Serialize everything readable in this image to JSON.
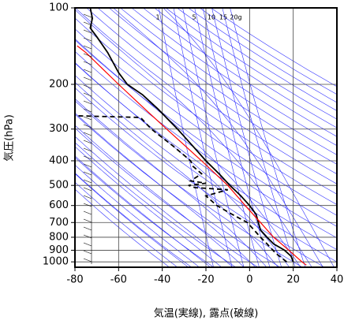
{
  "chart_data": {
    "type": "skewt",
    "ylabel": "気圧(hPa)",
    "xlabel": "気温(実線), 露点(破線)",
    "xlim": [
      -80,
      40
    ],
    "xticks": [
      -80,
      -60,
      -40,
      -20,
      0,
      20,
      40
    ],
    "ylim": [
      100,
      1050
    ],
    "yticks": [
      100,
      200,
      300,
      400,
      500,
      600,
      700,
      800,
      900,
      1000
    ],
    "y_log": true,
    "grid": true,
    "mixing_ratio_labels": [
      "1",
      "5",
      "10",
      "15",
      "20g"
    ],
    "series": [
      {
        "color": "#000000",
        "dash": false,
        "y": [
          1000,
          950,
          900,
          850,
          800,
          750,
          700,
          650,
          600,
          550,
          500,
          450,
          400,
          350,
          300,
          250,
          220,
          200,
          180,
          150,
          130,
          120,
          110,
          100
        ],
        "x": [
          20,
          19,
          16,
          11,
          8,
          5,
          4,
          3,
          0,
          -4,
          -9,
          -14,
          -20,
          -26,
          -33,
          -42,
          -49,
          -56,
          -60,
          -65,
          -70,
          -73,
          -72,
          -73
        ]
      },
      {
        "color": "#000000",
        "dash": true,
        "y": [
          1000,
          925,
          850,
          800,
          700,
          650,
          600,
          550,
          520,
          510,
          500,
          490,
          480,
          450,
          420,
          400,
          350,
          300,
          270,
          266
        ],
        "x": [
          17,
          12,
          8,
          5,
          -1,
          -8,
          -15,
          -20,
          -10,
          -25,
          -28,
          -20,
          -27,
          -22,
          -26,
          -27,
          -35,
          -45,
          -50,
          -79
        ]
      },
      {
        "color": "#ff0000",
        "dash": false,
        "y": [
          1030,
          1000,
          900,
          800,
          700,
          600,
          500,
          400,
          300,
          250,
          200,
          150,
          141
        ],
        "x": [
          26,
          24,
          18,
          11,
          5,
          -2,
          -10,
          -22,
          -38,
          -48,
          -60,
          -75,
          -79
        ]
      }
    ]
  }
}
